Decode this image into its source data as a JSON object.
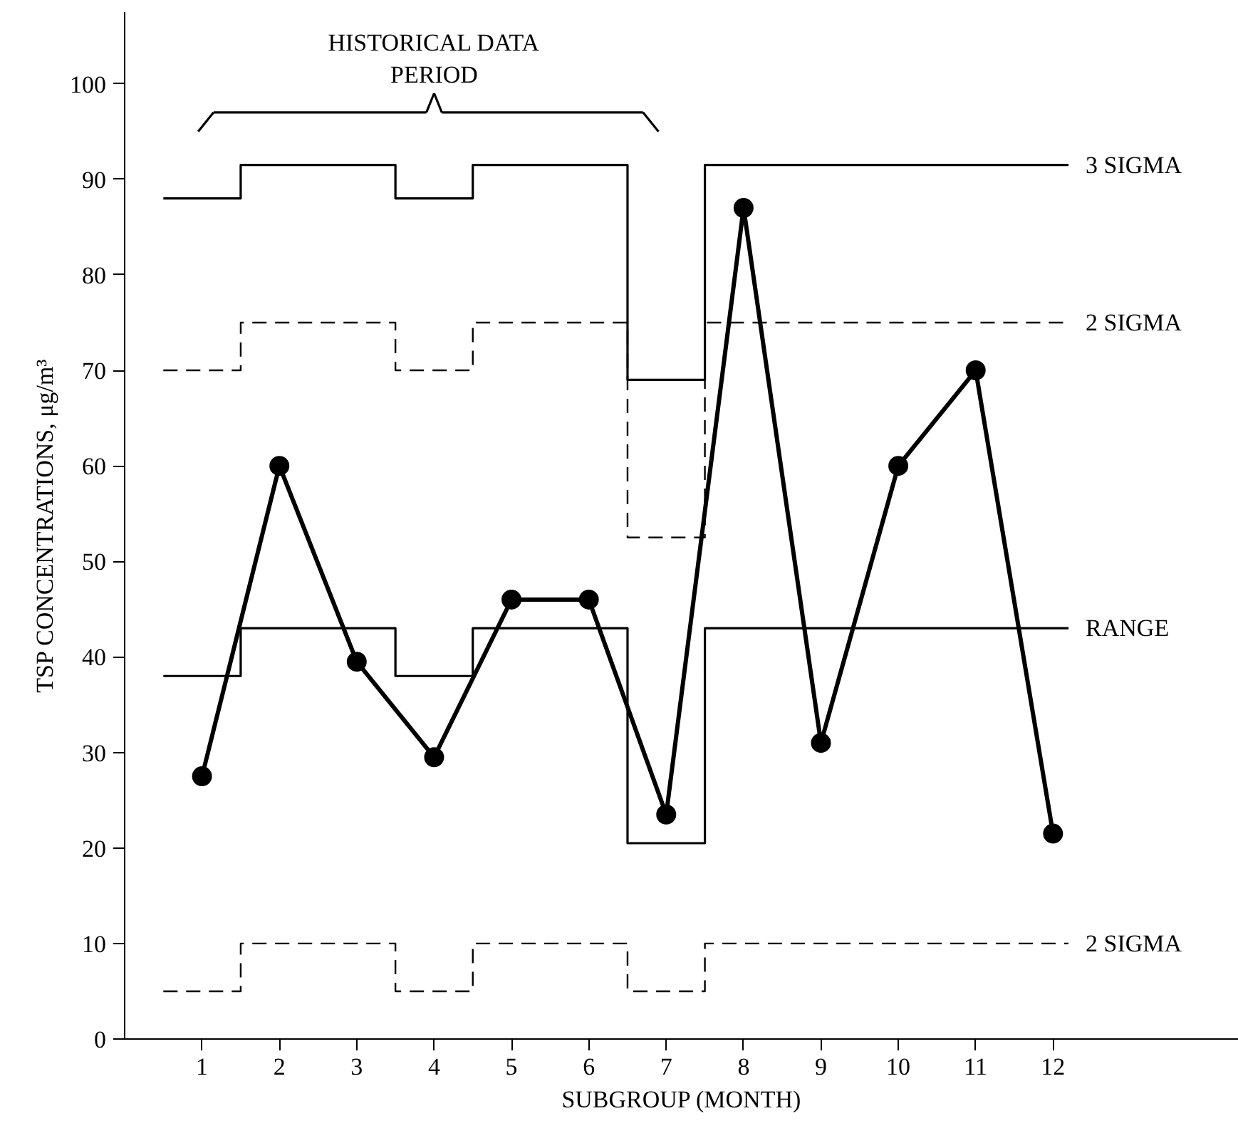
{
  "chart_data": {
    "type": "line",
    "xlabel": "SUBGROUP (MONTH)",
    "ylabel": "TSP CONCENTRATIONS, μg/m³",
    "annotations": [
      "HISTORICAL DATA PERIOD"
    ],
    "xlim": [
      0,
      14.4
    ],
    "ylim": [
      0,
      107.5
    ],
    "xticks": [
      1,
      2,
      3,
      4,
      5,
      6,
      7,
      8,
      9,
      10,
      11,
      12
    ],
    "yticks": [
      0,
      10,
      20,
      30,
      40,
      50,
      60,
      70,
      80,
      90,
      100
    ],
    "grid": false,
    "marker": "circle",
    "series": [
      {
        "color": "#000000",
        "x": [
          1,
          2,
          3,
          4,
          5,
          6,
          7,
          8,
          9,
          10,
          11,
          12
        ],
        "values": [
          27.5,
          60,
          39.5,
          29.5,
          46,
          46,
          23.5,
          87,
          31,
          60,
          70,
          21.5
        ]
      },
      {
        "type": "step",
        "name": "3 SIGMA",
        "color": "#000000",
        "line_style": "solid",
        "marker": "none",
        "x": [
          0.5,
          1.5,
          3.5,
          4.5,
          6.5,
          7.5,
          12.2
        ],
        "values": [
          88,
          91.5,
          88,
          91.5,
          69,
          91.5,
          91.5
        ]
      },
      {
        "type": "step",
        "name": "2 SIGMA",
        "color": "#000000",
        "line_style": "dashed",
        "marker": "none",
        "x": [
          0.5,
          1.5,
          3.5,
          4.5,
          6.5,
          7.5,
          12.2
        ],
        "values": [
          70,
          75,
          70,
          75,
          52.5,
          75,
          75
        ]
      },
      {
        "type": "step",
        "name": "RANGE",
        "color": "#000000",
        "line_style": "solid",
        "marker": "none",
        "x": [
          0.5,
          1.5,
          3.5,
          4.5,
          6.5,
          7.5,
          12.2
        ],
        "values": [
          38,
          43,
          38,
          43,
          20.5,
          43,
          43
        ]
      },
      {
        "type": "step",
        "name": "2 SIGMA",
        "color": "#000000",
        "line_style": "dashed",
        "marker": "none",
        "x": [
          0.5,
          1.5,
          3.5,
          4.5,
          6.5,
          7.5,
          12.2
        ],
        "values": [
          5,
          10,
          5,
          10,
          5,
          10,
          10
        ]
      }
    ]
  }
}
